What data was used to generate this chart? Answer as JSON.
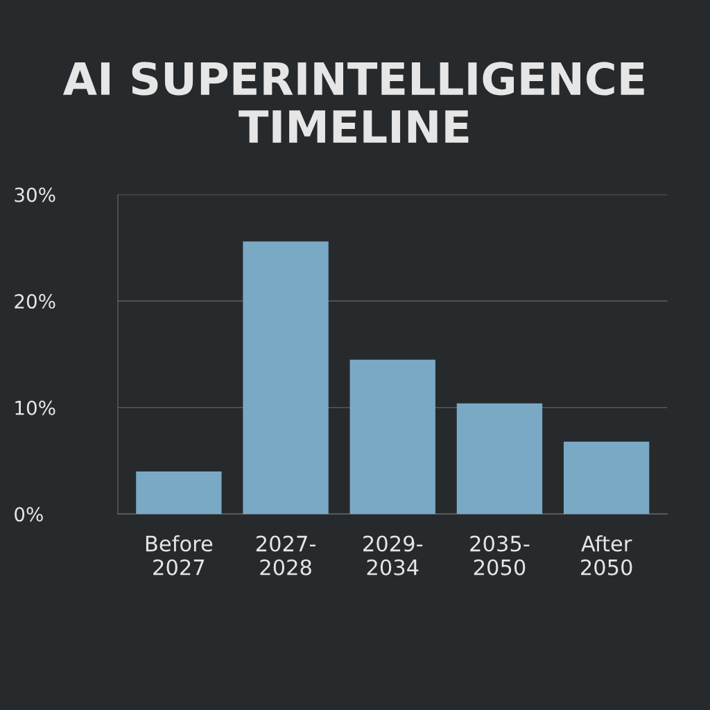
{
  "chart_data": {
    "type": "bar",
    "title": "AI SUPERINTELLIGENCE\nTIMELINE",
    "categories": [
      "Before\n2027",
      "2027-\n2028",
      "2029-\n2034",
      "2035-\n2050",
      "After\n2050"
    ],
    "values": [
      4.0,
      25.6,
      14.5,
      10.4,
      6.8
    ],
    "color": "#7aa9c5",
    "ylim": [
      0,
      30
    ],
    "yticks": [
      {
        "value": 0,
        "label": "0%"
      },
      {
        "value": 10,
        "label": "10%"
      },
      {
        "value": 20,
        "label": "20%"
      },
      {
        "value": 30,
        "label": "30%"
      }
    ],
    "grid": "y"
  }
}
